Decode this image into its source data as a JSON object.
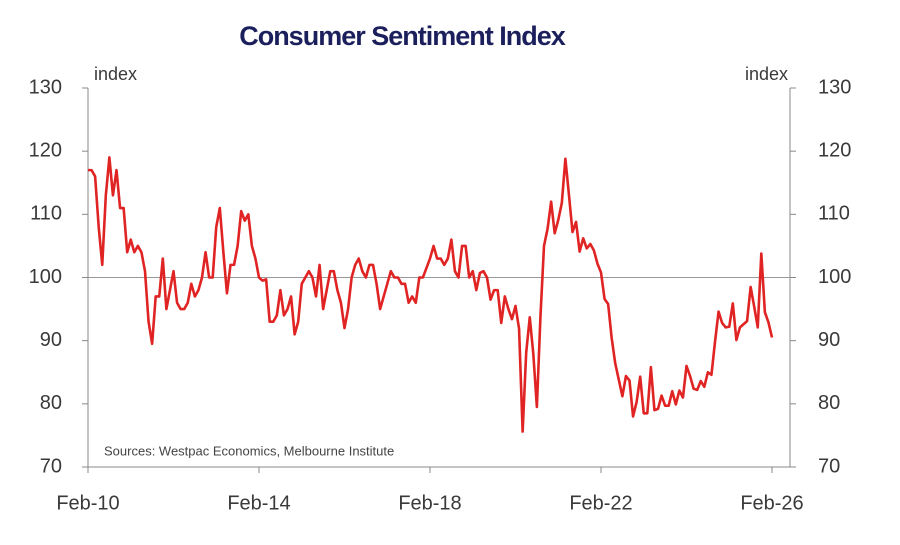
{
  "chart_data": {
    "type": "line",
    "title": "Consumer Sentiment Index",
    "y_unit_left": "index",
    "y_unit_right": "index",
    "source": "Sources: Westpac Economics, Melbourne Institute",
    "categories": [
      "Feb-10",
      null,
      null,
      null,
      null,
      null,
      null,
      null,
      null,
      null,
      null,
      null,
      null,
      null,
      null,
      null,
      null,
      null,
      null,
      null,
      null,
      null,
      null,
      null,
      null,
      null,
      null,
      null,
      null,
      null,
      null,
      null,
      null,
      null,
      null,
      null,
      null,
      null,
      null,
      null,
      null,
      null,
      null,
      null,
      null,
      null,
      null,
      null,
      "Feb-14",
      null,
      null,
      null,
      null,
      null,
      null,
      null,
      null,
      null,
      null,
      null,
      null,
      null,
      null,
      null,
      null,
      null,
      null,
      null,
      null,
      null,
      null,
      null,
      null,
      null,
      null,
      null,
      null,
      null,
      null,
      null,
      null,
      null,
      null,
      null,
      null,
      null,
      null,
      null,
      null,
      null,
      null,
      null,
      null,
      null,
      null,
      null,
      "Feb-18",
      null,
      null,
      null,
      null,
      null,
      null,
      null,
      null,
      null,
      null,
      null,
      null,
      null,
      null,
      null,
      null,
      null,
      null,
      null,
      null,
      null,
      null,
      null,
      null,
      null,
      null,
      null,
      null,
      null,
      null,
      null,
      null,
      null,
      null,
      null,
      null,
      null,
      null,
      null,
      null,
      null,
      null,
      null,
      null,
      null,
      null,
      null,
      "Feb-22",
      null,
      null,
      null,
      null,
      null,
      null,
      null,
      null,
      null,
      null,
      null,
      null,
      null,
      null,
      null,
      null,
      null,
      null,
      null,
      null,
      null,
      null,
      null,
      null,
      null,
      null,
      null,
      null,
      null,
      null,
      null,
      null,
      null,
      null,
      null,
      null,
      null,
      null,
      null,
      null,
      null,
      null,
      null,
      null,
      null,
      null,
      null,
      "Feb-26"
    ],
    "series": [
      {
        "name": "Consumer Sentiment Index",
        "color": "#e02323",
        "values": [
          117,
          117,
          116,
          108,
          102,
          113,
          119,
          113,
          117,
          111,
          111,
          104,
          106,
          104,
          105,
          104,
          101,
          93,
          89.5,
          97,
          97,
          103,
          95,
          98,
          101,
          96,
          95,
          95,
          96,
          99,
          97,
          98,
          100,
          104,
          100,
          100,
          108,
          111,
          104,
          97.5,
          102,
          102,
          105,
          110.5,
          109,
          110,
          105,
          103,
          100,
          99.5,
          99.7,
          93,
          93,
          94,
          98,
          94,
          95,
          97,
          91,
          93,
          99,
          100,
          101,
          100,
          97,
          102,
          95,
          98,
          101,
          101,
          98,
          96,
          92,
          95,
          100,
          102,
          103,
          101,
          100,
          102,
          102,
          99,
          95,
          97,
          99,
          101,
          100,
          100,
          99,
          99,
          96,
          97,
          96,
          100,
          100,
          101.5,
          103,
          105,
          103,
          103,
          102,
          103,
          106,
          101,
          100,
          105,
          105,
          100,
          101,
          98,
          100.7,
          101,
          100,
          96.5,
          98,
          98,
          92.8,
          97,
          95,
          93.4,
          95.5,
          91.9,
          75.6,
          88.1,
          93.7,
          87.9,
          79.5,
          93.8,
          105,
          107.7,
          112,
          107,
          109.1,
          111.8,
          118.8,
          113.1,
          107.2,
          108.8,
          104.1,
          106.2,
          104.6,
          105.3,
          104.3,
          102.2,
          100.8,
          96.6,
          95.8,
          90.4,
          86.4,
          83.8,
          81.2,
          84.4,
          83.7,
          78,
          80.3,
          84.3,
          78.5,
          78.5,
          85.8,
          79,
          79.2,
          81.3,
          79.7,
          79.7,
          82,
          79.9,
          82.1,
          81,
          86,
          84.4,
          82.4,
          82.2,
          83.6,
          82.7,
          85,
          84.6,
          89.8,
          94.6,
          92.8,
          92.1,
          92.2,
          95.9,
          90.1,
          92.1,
          92.6,
          93.1,
          98.5,
          95.4,
          92.1,
          103.8,
          94.5,
          92.9,
          90.5
        ]
      }
    ],
    "ylim": [
      70,
      130
    ],
    "yticks": [
      70,
      80,
      90,
      100,
      110,
      120,
      130
    ],
    "y2lim": [
      70,
      130
    ],
    "y2ticks": [
      70,
      80,
      90,
      100,
      110,
      120,
      130
    ],
    "reference_line": 100
  }
}
